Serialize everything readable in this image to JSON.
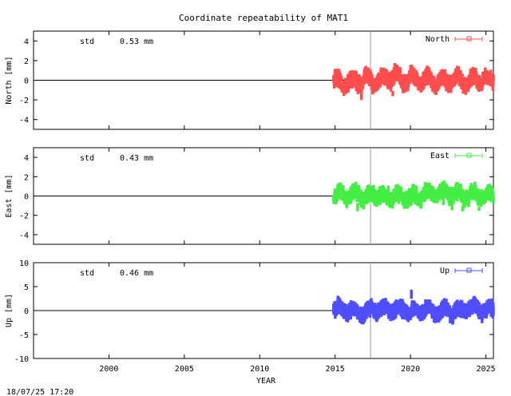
{
  "title": "Coordinate repeatability of MAT1",
  "footer_timestamp": "18/07/25 17:20",
  "xlabel": "YEAR",
  "colors": {
    "north": "#ff4d4d",
    "east": "#44ee44",
    "up": "#4f4fff",
    "axis": "#000000",
    "marker_line": "#999999"
  },
  "chart_data": [
    {
      "type": "scatter",
      "key": "north",
      "ylabel": "North [mm]",
      "ylim": [
        -5,
        5
      ],
      "yticks": [
        -4,
        -2,
        0,
        2,
        4
      ],
      "xlim": [
        1995,
        2025.5
      ],
      "xticks": [
        2000,
        2005,
        2010,
        2015,
        2020,
        2025
      ],
      "std_label": "std",
      "std_value": "0.53 mm",
      "legend": "North",
      "legend_position": "top-right",
      "vertical_marker_x": 2017.35,
      "data_start": 2014.9,
      "data_end": 2025.5,
      "x_samples": [
        2015.0,
        2015.5,
        2016.0,
        2016.5,
        2017.0,
        2017.5,
        2018.0,
        2018.5,
        2019.0,
        2019.5,
        2020.0,
        2020.5,
        2021.0,
        2021.5,
        2022.0,
        2022.5,
        2023.0,
        2023.5,
        2024.0,
        2024.5,
        2025.0,
        2025.4
      ],
      "y_samples": [
        0.2,
        -0.6,
        0.1,
        -0.4,
        0.6,
        -0.5,
        0.3,
        -0.2,
        0.9,
        -0.4,
        0.5,
        -0.3,
        0.4,
        -0.5,
        0.2,
        -0.4,
        0.6,
        -0.6,
        0.3,
        -0.2,
        0.4,
        -0.3
      ]
    },
    {
      "type": "scatter",
      "key": "east",
      "ylabel": "East [mm]",
      "ylim": [
        -5,
        5
      ],
      "yticks": [
        -4,
        -2,
        0,
        2,
        4
      ],
      "xlim": [
        1995,
        2025.5
      ],
      "xticks": [
        2000,
        2005,
        2010,
        2015,
        2020,
        2025
      ],
      "std_label": "std",
      "std_value": "0.43 mm",
      "legend": "East",
      "legend_position": "top-right",
      "vertical_marker_x": 2017.35,
      "data_start": 2014.9,
      "data_end": 2025.5,
      "x_samples": [
        2015.0,
        2015.5,
        2016.0,
        2016.5,
        2017.0,
        2017.5,
        2018.0,
        2018.5,
        2019.0,
        2019.5,
        2020.0,
        2020.5,
        2021.0,
        2021.5,
        2022.0,
        2022.5,
        2023.0,
        2023.5,
        2024.0,
        2024.5,
        2025.0,
        2025.4
      ],
      "y_samples": [
        -0.2,
        0.3,
        -0.1,
        0.4,
        -0.3,
        0.2,
        0.1,
        -0.4,
        0.3,
        -0.2,
        0.0,
        -0.3,
        0.5,
        0.2,
        0.6,
        0.1,
        0.4,
        -0.2,
        0.3,
        -0.1,
        0.2,
        0.1
      ]
    },
    {
      "type": "scatter",
      "key": "up",
      "ylabel": "Up [mm]",
      "ylim": [
        -10,
        10
      ],
      "yticks": [
        -10,
        -5,
        0,
        5,
        10
      ],
      "xlim": [
        1995,
        2025.5
      ],
      "xticks": [
        2000,
        2005,
        2010,
        2015,
        2020,
        2025
      ],
      "std_label": "std",
      "std_value": "0.46 mm",
      "legend": "Up",
      "legend_position": "top-right",
      "vertical_marker_x": 2017.35,
      "data_start": 2014.9,
      "data_end": 2025.5,
      "x_samples": [
        2015.0,
        2015.5,
        2016.0,
        2016.5,
        2017.0,
        2017.5,
        2018.0,
        2018.5,
        2019.0,
        2019.5,
        2020.0,
        2020.5,
        2021.0,
        2021.5,
        2022.0,
        2022.5,
        2023.0,
        2023.5,
        2024.0,
        2024.5,
        2025.0,
        2025.4
      ],
      "y_samples": [
        0.4,
        0.2,
        0.1,
        -0.3,
        -0.5,
        0.3,
        0.2,
        0.4,
        0.1,
        0.2,
        -0.2,
        -0.4,
        0.6,
        -0.3,
        -0.2,
        0.0,
        -0.3,
        0.2,
        0.8,
        0.3,
        0.1,
        0.2
      ]
    }
  ]
}
